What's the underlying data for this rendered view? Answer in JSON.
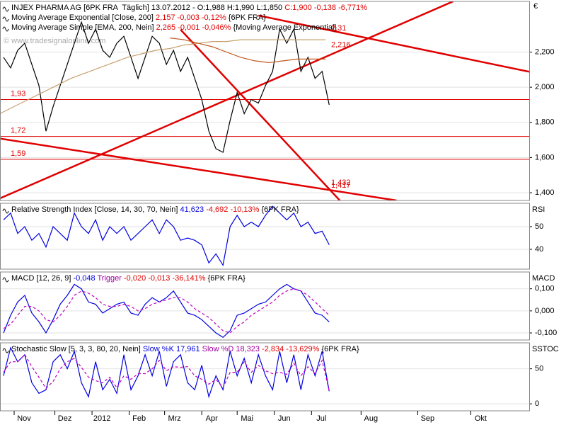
{
  "currency": "€",
  "watermark": "© www.tradesignalonline.com",
  "chart_data": [
    {
      "type": "line",
      "panel_label": null,
      "legend": [
        [
          {
            "text": "INJEX PHARMA AG [6PK FRA  Täglich] 13.07.2012 - O:1,988 H:1,990 L:1,850 ",
            "color": "#000000"
          },
          {
            "text": "C:1,900 -0,138 -6,771%",
            "color": "#e00000"
          }
        ],
        [
          {
            "text": "Moving Average Exponential [Close, 200] ",
            "color": "#000000"
          },
          {
            "text": "2,157 -0,003 -0,12%",
            "color": "#e00000"
          },
          {
            "text": " {6PK FRA}",
            "color": "#000000"
          }
        ],
        [
          {
            "text": "Moving Average Simple [EMA, 200, Nein] ",
            "color": "#000000"
          },
          {
            "text": "2,265 -0,001 -0,046%",
            "color": "#e00000"
          },
          {
            "text": " {Moving Average Exponential}",
            "color": "#000000"
          }
        ]
      ],
      "xlim": [
        0,
        299
      ],
      "ylim": [
        1.356,
        2.488
      ],
      "yticks": [
        {
          "value": 1.4,
          "label": "1,400"
        },
        {
          "value": 1.6,
          "label": "1,600"
        },
        {
          "value": 1.8,
          "label": "1,800"
        },
        {
          "value": 2.0,
          "label": "2,000"
        },
        {
          "value": 2.2,
          "label": "2,200"
        }
      ],
      "x": [
        2,
        6,
        10,
        14,
        18,
        22,
        26,
        30,
        34,
        38,
        42,
        46,
        50,
        54,
        58,
        62,
        66,
        70,
        74,
        78,
        82,
        86,
        90,
        94,
        98,
        102,
        106,
        110,
        114,
        118,
        122,
        126,
        130,
        134,
        138,
        142,
        146,
        150,
        154,
        158,
        162,
        166,
        170,
        174,
        178,
        182,
        186
      ],
      "series": [
        {
          "color": "#000000",
          "values": [
            2.17,
            2.11,
            2.21,
            2.25,
            2.13,
            2.01,
            1.75,
            1.89,
            2.01,
            2.13,
            2.25,
            2.37,
            2.25,
            2.33,
            2.21,
            2.17,
            2.25,
            2.29,
            2.17,
            2.05,
            2.17,
            2.29,
            2.25,
            2.13,
            2.21,
            2.09,
            2.17,
            2.05,
            1.93,
            1.75,
            1.65,
            1.63,
            1.81,
            1.97,
            1.85,
            1.93,
            1.91,
            2.01,
            2.09,
            2.33,
            2.25,
            2.33,
            2.09,
            2.17,
            2.05,
            2.09,
            1.9
          ]
        },
        {
          "color": "#c8a070",
          "x": [
            0,
            8,
            16,
            24,
            32,
            40,
            48,
            56,
            64,
            72,
            80,
            88,
            96,
            104,
            112,
            120,
            128,
            136,
            144,
            152,
            160,
            168,
            176,
            184
          ],
          "values": [
            1.85,
            1.89,
            1.93,
            1.97,
            2.01,
            2.05,
            2.08,
            2.11,
            2.14,
            2.17,
            2.19,
            2.21,
            2.22,
            2.24,
            2.25,
            2.26,
            2.26,
            2.27,
            2.27,
            2.27,
            2.27,
            2.27,
            2.27,
            2.27
          ]
        },
        {
          "color": "#c0581c",
          "x": [
            96,
            104,
            112,
            120,
            128,
            136,
            144,
            152,
            160,
            168,
            176,
            184
          ],
          "values": [
            2.28,
            2.27,
            2.25,
            2.23,
            2.2,
            2.17,
            2.15,
            2.14,
            2.15,
            2.16,
            2.16,
            2.16
          ]
        }
      ],
      "trendlines": [
        [
          0,
          1.368,
          256,
          2.488
        ],
        [
          0,
          1.708,
          224,
          1.356
        ],
        [
          146,
          2.408,
          299,
          2.088
        ],
        [
          102,
          2.328,
          192,
          1.356
        ]
      ],
      "trend_color": "#e00000",
      "levels": [
        {
          "value": 1.93,
          "label": "1,93"
        },
        {
          "value": 1.72,
          "label": "1,72"
        },
        {
          "value": 1.59,
          "label": "1,59"
        }
      ],
      "annotations": [
        {
          "value": 2.31,
          "label": "2,31"
        },
        {
          "value": 2.216,
          "label": "2,216"
        },
        {
          "value": 1.432,
          "label": "1,432"
        },
        {
          "value": 1.417,
          "label": "1,417"
        }
      ]
    },
    {
      "type": "line",
      "panel_label": "RSI",
      "legend": [
        [
          {
            "text": "Relative Strength Index [Close, 14, 30, 70, Nein] ",
            "color": "#000000"
          },
          {
            "text": "41,623",
            "color": "#0000e0"
          },
          {
            "text": " -4,692 -10,13%",
            "color": "#e00000"
          },
          {
            "text": " {6PK FRA}",
            "color": "#000000"
          }
        ]
      ],
      "xlim": [
        0,
        299
      ],
      "ylim": [
        31.25,
        60.3
      ],
      "yticks": [
        40,
        50
      ],
      "x": [
        2,
        6,
        10,
        14,
        18,
        22,
        26,
        30,
        34,
        38,
        42,
        46,
        50,
        54,
        58,
        62,
        66,
        70,
        74,
        78,
        82,
        86,
        90,
        94,
        98,
        102,
        106,
        110,
        114,
        118,
        122,
        126,
        130,
        134,
        138,
        142,
        146,
        150,
        154,
        158,
        162,
        166,
        170,
        174,
        178,
        182,
        186
      ],
      "series": [
        {
          "color": "#0000e0",
          "values": [
            53,
            56,
            47,
            50,
            44,
            47,
            41,
            50,
            47,
            44,
            56,
            50,
            47,
            53,
            44,
            50,
            47,
            50,
            44,
            47,
            50,
            53,
            47,
            53,
            50,
            44,
            45,
            44,
            42,
            34,
            38,
            33,
            50,
            55,
            50,
            52,
            50,
            55,
            59,
            56,
            53,
            56,
            50,
            52,
            47,
            48,
            42
          ]
        }
      ]
    },
    {
      "type": "line",
      "panel_label": "MACD",
      "legend": [
        [
          {
            "text": "MACD [12, 26, 9] ",
            "color": "#000000"
          },
          {
            "text": "-0,048",
            "color": "#0000e0"
          },
          {
            "text": " Trigger",
            "color": "#a000a0"
          },
          {
            "text": " -0,020 -0,013 -36,141%",
            "color": "#e00000"
          },
          {
            "text": " {6PK FRA}",
            "color": "#000000"
          }
        ]
      ],
      "xlim": [
        0,
        299
      ],
      "ylim": [
        -0.132,
        0.176
      ],
      "yticks": [
        {
          "value": -0.1,
          "label": "-0,100"
        },
        {
          "value": 0,
          "label": "0,000"
        },
        {
          "value": 0.1,
          "label": "0,100"
        }
      ],
      "x": [
        2,
        6,
        10,
        14,
        18,
        22,
        26,
        30,
        34,
        38,
        42,
        46,
        50,
        54,
        58,
        62,
        66,
        70,
        74,
        78,
        82,
        86,
        90,
        94,
        98,
        102,
        106,
        110,
        114,
        118,
        122,
        126,
        130,
        134,
        138,
        142,
        146,
        150,
        154,
        158,
        162,
        166,
        170,
        174,
        178,
        182,
        186
      ],
      "series": [
        {
          "color": "#0000e0",
          "values": [
            -0.1,
            -0.02,
            0.04,
            0.07,
            -0.01,
            -0.05,
            -0.1,
            -0.04,
            0.03,
            0.07,
            0.12,
            0.1,
            0.04,
            0.03,
            -0.01,
            0.01,
            0.03,
            0.04,
            -0.01,
            -0.02,
            0.03,
            0.06,
            0.04,
            0.06,
            0.09,
            0.04,
            -0.01,
            -0.02,
            -0.04,
            -0.07,
            -0.1,
            -0.12,
            -0.09,
            -0.02,
            -0.01,
            0.01,
            0.03,
            0.04,
            0.07,
            0.1,
            0.12,
            0.1,
            0.09,
            0.04,
            -0.01,
            -0.02,
            -0.05
          ]
        },
        {
          "color": "#c000c0",
          "dashed": true,
          "values": [
            -0.08,
            -0.06,
            -0.02,
            0.02,
            0.02,
            0.0,
            -0.04,
            -0.05,
            -0.02,
            0.02,
            0.07,
            0.09,
            0.08,
            0.06,
            0.03,
            0.02,
            0.02,
            0.03,
            0.02,
            0.0,
            0.01,
            0.03,
            0.04,
            0.05,
            0.06,
            0.06,
            0.04,
            0.01,
            -0.01,
            -0.03,
            -0.06,
            -0.09,
            -0.1,
            -0.07,
            -0.05,
            -0.02,
            0.0,
            0.02,
            0.04,
            0.07,
            0.09,
            0.1,
            0.09,
            0.07,
            0.04,
            0.01,
            -0.02
          ]
        }
      ]
    },
    {
      "type": "line",
      "panel_label": "SSTOC",
      "legend": [
        [
          {
            "text": "Stochastic Slow [5, 3, 3, 80, 20, Nein] ",
            "color": "#000000"
          },
          {
            "text": "Slow %K 17,961",
            "color": "#0000e0"
          },
          {
            "text": " Slow %D 18,323",
            "color": "#a000a0"
          },
          {
            "text": " -2,834 -13,629%",
            "color": "#e00000"
          },
          {
            "text": " {6PK FRA}",
            "color": "#000000"
          }
        ]
      ],
      "xlim": [
        0,
        299
      ],
      "ylim": [
        -10,
        87
      ],
      "yticks": [
        0,
        50
      ],
      "xticks": [
        {
          "value": 8,
          "label": "Nov"
        },
        {
          "value": 31,
          "label": "Dez"
        },
        {
          "value": 52,
          "label": "2012"
        },
        {
          "value": 73,
          "label": "Feb"
        },
        {
          "value": 93,
          "label": "Mrz"
        },
        {
          "value": 114,
          "label": "Apr"
        },
        {
          "value": 134,
          "label": "Mai"
        },
        {
          "value": 155,
          "label": "Jun"
        },
        {
          "value": 176,
          "label": "Jul"
        },
        {
          "value": 204,
          "label": "Aug"
        },
        {
          "value": 236,
          "label": "Sep"
        },
        {
          "value": 266,
          "label": "Okt"
        }
      ],
      "x": [
        2,
        6,
        10,
        14,
        18,
        22,
        26,
        30,
        34,
        38,
        42,
        46,
        50,
        54,
        58,
        62,
        66,
        70,
        74,
        78,
        82,
        86,
        90,
        94,
        98,
        102,
        106,
        110,
        114,
        118,
        122,
        126,
        130,
        134,
        138,
        142,
        146,
        150,
        154,
        158,
        162,
        166,
        170,
        174,
        178,
        182,
        186
      ],
      "series": [
        {
          "color": "#0000e0",
          "values": [
            40,
            80,
            60,
            70,
            30,
            15,
            20,
            60,
            70,
            50,
            75,
            30,
            10,
            60,
            20,
            35,
            15,
            70,
            20,
            40,
            70,
            40,
            75,
            25,
            60,
            70,
            30,
            20,
            55,
            10,
            40,
            20,
            75,
            40,
            65,
            30,
            70,
            40,
            20,
            75,
            30,
            70,
            20,
            70,
            40,
            75,
            18
          ]
        },
        {
          "color": "#c000c0",
          "dashed": true,
          "values": [
            45,
            60,
            60,
            70,
            53,
            38,
            22,
            32,
            50,
            60,
            65,
            52,
            38,
            33,
            30,
            38,
            23,
            40,
            35,
            43,
            43,
            50,
            62,
            47,
            53,
            52,
            53,
            40,
            35,
            28,
            35,
            23,
            45,
            45,
            60,
            45,
            55,
            47,
            43,
            45,
            42,
            58,
            40,
            53,
            43,
            62,
            18
          ]
        }
      ]
    }
  ]
}
